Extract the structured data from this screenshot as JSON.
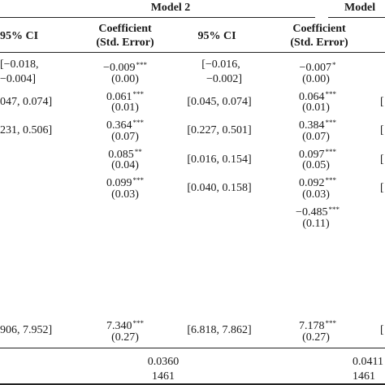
{
  "headers": {
    "model2": "Model 2",
    "model3_partial": "Model",
    "ci_left": "95% CI",
    "coef_line1": "Coefficient",
    "coef_line2": "(Std. Error)",
    "ci_mid": "95% CI",
    "coef2_line1": "Coefficient",
    "coef2_line2": "(Std. Error)"
  },
  "ci_col1": [
    "[−0.018,",
    "−0.004]",
    "047, 0.074]",
    "231, 0.506]",
    "906, 7.952]"
  ],
  "model2_coef": [
    {
      "coef": "−0.009",
      "stars": "***",
      "se": "(0.00)"
    },
    {
      "coef": "0.061",
      "stars": "***",
      "se": "(0.01)"
    },
    {
      "coef": "0.364",
      "stars": "***",
      "se": "(0.07)"
    },
    {
      "coef": "0.085",
      "stars": "**",
      "se": "(0.04)"
    },
    {
      "coef": "0.099",
      "stars": "***",
      "se": "(0.03)"
    },
    {
      "coef": "7.340",
      "stars": "***",
      "se": "(0.27)"
    }
  ],
  "model2_ci": [
    "[−0.016,",
    "−0.002]",
    "[0.045, 0.074]",
    "[0.227, 0.501]",
    "[0.016, 0.154]",
    "[0.040, 0.158]",
    "[6.818, 7.862]"
  ],
  "model3_coef": [
    {
      "coef": "−0.007",
      "stars": "*",
      "se": "(0.00)"
    },
    {
      "coef": "0.064",
      "stars": "***",
      "se": "(0.01)"
    },
    {
      "coef": "0.384",
      "stars": "***",
      "se": "(0.07)"
    },
    {
      "coef": "0.097",
      "stars": "***",
      "se": "(0.05)"
    },
    {
      "coef": "0.092",
      "stars": "***",
      "se": "(0.03)"
    },
    {
      "coef": "−0.485",
      "stars": "***",
      "se": "(0.11)"
    },
    {
      "coef": "7.178",
      "stars": "***",
      "se": "(0.27)"
    }
  ],
  "footer": {
    "r2_model2": "0.0360",
    "n_model2": "1461",
    "r2_model3": "0.0411",
    "n_model3": "1461"
  },
  "edge_glyph": "["
}
